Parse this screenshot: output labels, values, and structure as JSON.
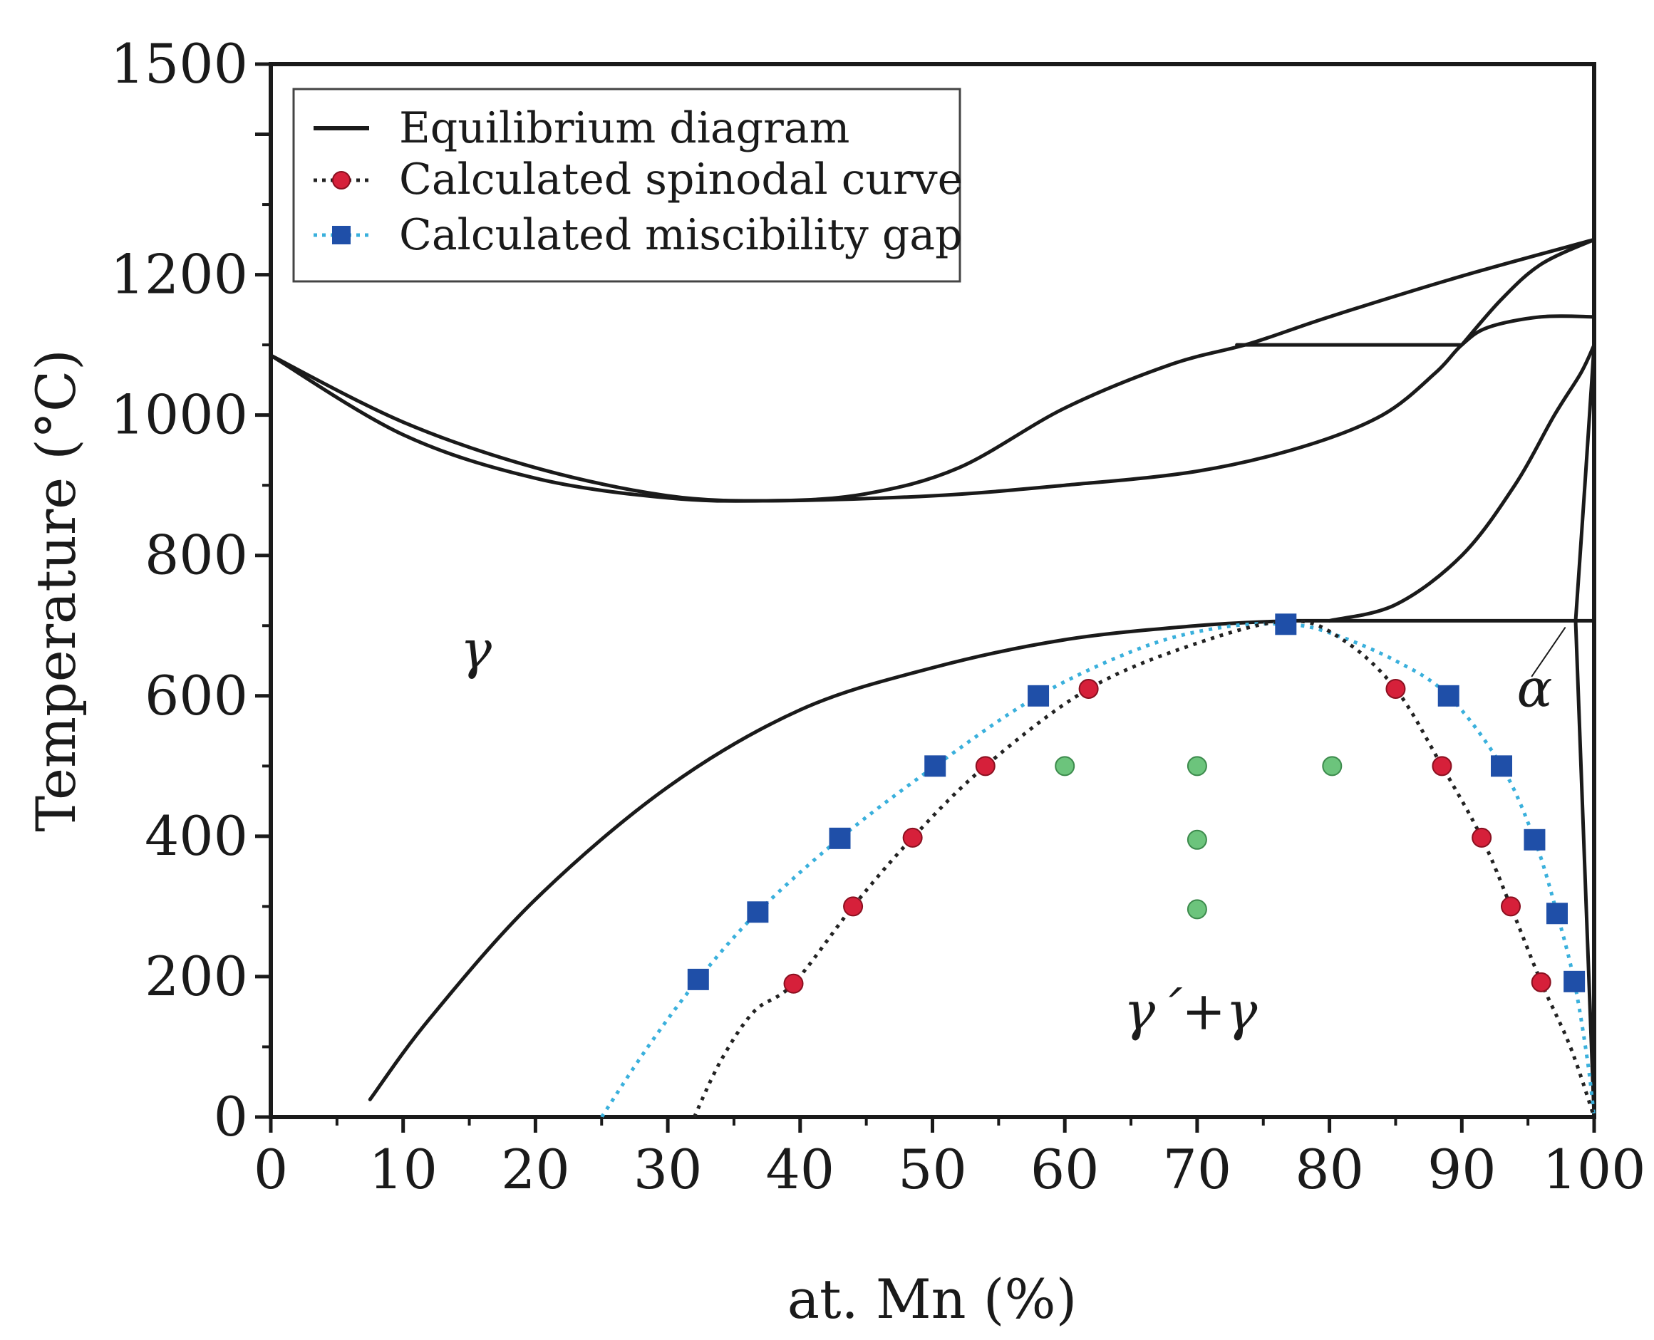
{
  "chart_data": {
    "type": "line",
    "title": "",
    "xlabel": "at. Mn (%)",
    "ylabel": "Temperature (°C)",
    "xlim": [
      0,
      100
    ],
    "ylim": [
      0,
      1500
    ],
    "x_ticks": [
      "0",
      "10",
      "20",
      "30",
      "40",
      "50",
      "60",
      "70",
      "80",
      "90",
      "100"
    ],
    "y_ticks": [
      "0",
      "200",
      "400",
      "600",
      "800",
      "1000",
      "1200",
      "1500"
    ],
    "grid": false,
    "legend": {
      "position": "top-left",
      "entries": [
        {
          "label": "Equilibrium diagram",
          "style": "solid",
          "color": "#1a1a1a"
        },
        {
          "label": "Calculated spinodal curve",
          "style": "dotted-circle",
          "color": "#d6203a"
        },
        {
          "label": "Calculated miscibility gap",
          "style": "dotted-square",
          "color": "#1f4fa8"
        }
      ]
    },
    "colors": {
      "equilibrium": "#1a1a1a",
      "spinodal_line": "#222222",
      "spinodal_marker": "#d6203a",
      "gap_line": "#3ab0dc",
      "gap_marker": "#1f4fa8",
      "experiment_marker": "#6cc47c"
    },
    "equilibrium_lines": [
      {
        "name": "liquidus",
        "points": [
          [
            0,
            1085
          ],
          [
            10,
            990
          ],
          [
            20,
            925
          ],
          [
            30,
            885
          ],
          [
            38,
            878
          ],
          [
            45,
            888
          ],
          [
            52,
            925
          ],
          [
            60,
            1010
          ],
          [
            68,
            1072
          ],
          [
            74,
            1102
          ],
          [
            80,
            1140
          ],
          [
            90,
            1198
          ],
          [
            100,
            1250
          ]
        ]
      },
      {
        "name": "solidus",
        "points": [
          [
            0,
            1085
          ],
          [
            10,
            972
          ],
          [
            20,
            910
          ],
          [
            30,
            882
          ],
          [
            38,
            878
          ],
          [
            50,
            885
          ],
          [
            60,
            900
          ],
          [
            70,
            920
          ],
          [
            78,
            955
          ],
          [
            84,
            1000
          ],
          [
            88,
            1060
          ],
          [
            90,
            1100
          ],
          [
            92,
            1125
          ],
          [
            96,
            1140
          ],
          [
            100,
            1140
          ]
        ]
      },
      {
        "name": "peritectic-isotherm",
        "points": [
          [
            73,
            1100
          ],
          [
            90,
            1100
          ]
        ]
      },
      {
        "name": "upper-delta-branch",
        "points": [
          [
            90,
            1100
          ],
          [
            93,
            1165
          ],
          [
            96,
            1215
          ],
          [
            100,
            1250
          ]
        ]
      },
      {
        "name": "gamma-alpha-boundary",
        "points": [
          [
            80,
            707
          ],
          [
            85,
            730
          ],
          [
            90,
            800
          ],
          [
            94,
            900
          ],
          [
            97,
            1000
          ],
          [
            99,
            1060
          ],
          [
            100,
            1100
          ]
        ]
      },
      {
        "name": "eutectoid-isotherm",
        "points": [
          [
            77,
            707
          ],
          [
            100,
            707
          ]
        ]
      },
      {
        "name": "alpha-solvus",
        "points": [
          [
            98.6,
            707
          ],
          [
            99.3,
            900
          ],
          [
            100,
            1100
          ]
        ]
      },
      {
        "name": "alpha-solvus-low",
        "points": [
          [
            98.6,
            707
          ],
          [
            99.4,
            300
          ],
          [
            100,
            0
          ]
        ]
      },
      {
        "name": "gamma-prime-boundary",
        "points": [
          [
            7.5,
            25
          ],
          [
            12,
            140
          ],
          [
            20,
            310
          ],
          [
            30,
            470
          ],
          [
            40,
            580
          ],
          [
            50,
            640
          ],
          [
            60,
            680
          ],
          [
            70,
            700
          ],
          [
            77,
            707
          ]
        ]
      },
      {
        "name": "alpha-label-leader",
        "points": [
          [
            95.3,
            628
          ],
          [
            97.8,
            697
          ]
        ]
      }
    ],
    "series": [
      {
        "name": "Calculated spinodal curve",
        "marker": "circle",
        "curve": [
          [
            32,
            0
          ],
          [
            34,
            80
          ],
          [
            36.5,
            150
          ],
          [
            39.5,
            190
          ],
          [
            44,
            300
          ],
          [
            48.5,
            398
          ],
          [
            54,
            500
          ],
          [
            61.8,
            610
          ],
          [
            70,
            675
          ],
          [
            77,
            707
          ],
          [
            81,
            680
          ],
          [
            85,
            610
          ],
          [
            88.5,
            500
          ],
          [
            91.5,
            398
          ],
          [
            93.7,
            300
          ],
          [
            96,
            192
          ],
          [
            98.2,
            100
          ],
          [
            100,
            0
          ]
        ],
        "points": [
          [
            39.5,
            190
          ],
          [
            44,
            300
          ],
          [
            48.5,
            398
          ],
          [
            54,
            500
          ],
          [
            61.8,
            610
          ],
          [
            85,
            610
          ],
          [
            88.5,
            500
          ],
          [
            91.5,
            398
          ],
          [
            93.7,
            300
          ],
          [
            96,
            192
          ]
        ]
      },
      {
        "name": "Calculated miscibility gap",
        "marker": "square",
        "curve": [
          [
            25,
            0
          ],
          [
            28.5,
            100
          ],
          [
            32.3,
            196
          ],
          [
            36.8,
            292
          ],
          [
            43,
            397
          ],
          [
            50.2,
            500
          ],
          [
            58,
            600
          ],
          [
            66,
            670
          ],
          [
            72,
            698
          ],
          [
            76.7,
            702
          ],
          [
            80,
            690
          ],
          [
            85,
            650
          ],
          [
            89,
            600
          ],
          [
            93,
            500
          ],
          [
            95.5,
            395
          ],
          [
            97.2,
            290
          ],
          [
            98.5,
            193
          ],
          [
            99.5,
            80
          ],
          [
            100,
            0
          ]
        ],
        "points": [
          [
            32.3,
            196
          ],
          [
            36.8,
            292
          ],
          [
            43,
            397
          ],
          [
            50.2,
            500
          ],
          [
            58,
            600
          ],
          [
            76.7,
            702
          ],
          [
            89,
            600
          ],
          [
            93,
            500
          ],
          [
            95.5,
            395
          ],
          [
            97.2,
            290
          ],
          [
            98.5,
            193
          ]
        ]
      },
      {
        "name": "experimental-points",
        "marker": "circle",
        "points": [
          [
            60,
            500
          ],
          [
            70,
            500
          ],
          [
            80.2,
            500
          ],
          [
            70,
            395
          ],
          [
            70,
            296
          ]
        ]
      }
    ],
    "annotations": [
      {
        "text": "γ",
        "x": 15.5,
        "y": 640
      },
      {
        "text": "α",
        "x": 95.5,
        "y": 585
      },
      {
        "text": "γ´+γ",
        "x": 69.5,
        "y": 125
      }
    ]
  }
}
